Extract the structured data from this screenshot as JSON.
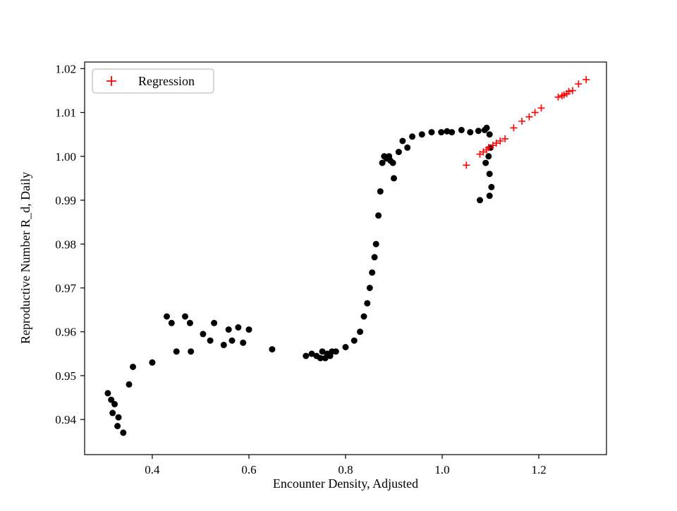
{
  "chart_data": {
    "type": "scatter",
    "title": "",
    "xlabel": "Encounter Density, Adjusted",
    "ylabel": "Reproductive Number R_d, Daily",
    "xlim": [
      0.26,
      1.34
    ],
    "ylim": [
      0.932,
      1.0215
    ],
    "xticks": [
      0.4,
      0.6,
      0.8,
      1.0,
      1.2
    ],
    "xtick_labels": [
      "0.4",
      "0.6",
      "0.8",
      "1.0",
      "1.2"
    ],
    "yticks": [
      0.94,
      0.95,
      0.96,
      0.97,
      0.98,
      0.99,
      1.0,
      1.01,
      1.02
    ],
    "ytick_labels": [
      "0.94",
      "0.95",
      "0.96",
      "0.97",
      "0.98",
      "0.99",
      "1.00",
      "1.01",
      "1.02"
    ],
    "grid": false,
    "legend": {
      "position": "upper-left",
      "entries": [
        {
          "label": "Regression",
          "marker": "plus",
          "color": "#ff0000"
        }
      ]
    },
    "series": [
      {
        "name": "observations",
        "marker": "circle",
        "color": "#000000",
        "points": [
          [
            0.308,
            0.946
          ],
          [
            0.315,
            0.9445
          ],
          [
            0.318,
            0.9415
          ],
          [
            0.322,
            0.9435
          ],
          [
            0.328,
            0.9385
          ],
          [
            0.33,
            0.9405
          ],
          [
            0.34,
            0.937
          ],
          [
            0.352,
            0.948
          ],
          [
            0.36,
            0.952
          ],
          [
            0.4,
            0.953
          ],
          [
            0.43,
            0.9635
          ],
          [
            0.44,
            0.962
          ],
          [
            0.45,
            0.9555
          ],
          [
            0.468,
            0.9635
          ],
          [
            0.478,
            0.962
          ],
          [
            0.48,
            0.9555
          ],
          [
            0.505,
            0.9595
          ],
          [
            0.52,
            0.958
          ],
          [
            0.528,
            0.962
          ],
          [
            0.548,
            0.957
          ],
          [
            0.558,
            0.9605
          ],
          [
            0.565,
            0.958
          ],
          [
            0.578,
            0.961
          ],
          [
            0.588,
            0.9575
          ],
          [
            0.6,
            0.9605
          ],
          [
            0.648,
            0.956
          ],
          [
            0.718,
            0.9545
          ],
          [
            0.73,
            0.955
          ],
          [
            0.74,
            0.9545
          ],
          [
            0.748,
            0.954
          ],
          [
            0.752,
            0.9555
          ],
          [
            0.758,
            0.954
          ],
          [
            0.762,
            0.955
          ],
          [
            0.768,
            0.9545
          ],
          [
            0.772,
            0.9555
          ],
          [
            0.78,
            0.9555
          ],
          [
            0.8,
            0.9565
          ],
          [
            0.818,
            0.958
          ],
          [
            0.83,
            0.96
          ],
          [
            0.838,
            0.9635
          ],
          [
            0.845,
            0.9665
          ],
          [
            0.85,
            0.97
          ],
          [
            0.855,
            0.9735
          ],
          [
            0.86,
            0.977
          ],
          [
            0.863,
            0.98
          ],
          [
            0.868,
            0.9865
          ],
          [
            0.872,
            0.992
          ],
          [
            0.876,
            0.9985
          ],
          [
            0.88,
            1.0
          ],
          [
            0.885,
            0.9995
          ],
          [
            0.89,
            1.0
          ],
          [
            0.893,
            0.999
          ],
          [
            0.898,
            0.9985
          ],
          [
            0.9,
            0.995
          ],
          [
            0.91,
            1.001
          ],
          [
            0.918,
            1.0035
          ],
          [
            0.928,
            1.002
          ],
          [
            0.938,
            1.0045
          ],
          [
            0.958,
            1.005
          ],
          [
            0.978,
            1.0055
          ],
          [
            0.998,
            1.0055
          ],
          [
            1.01,
            1.0057
          ],
          [
            1.02,
            1.0055
          ],
          [
            1.04,
            1.006
          ],
          [
            1.058,
            1.0055
          ],
          [
            1.075,
            1.0058
          ],
          [
            1.088,
            1.006
          ],
          [
            1.092,
            1.0065
          ],
          [
            1.098,
            1.005
          ],
          [
            1.1,
            1.002
          ],
          [
            1.096,
            1.0
          ],
          [
            1.09,
            0.9985
          ],
          [
            1.098,
            0.996
          ],
          [
            1.102,
            0.993
          ],
          [
            1.098,
            0.991
          ],
          [
            1.078,
            0.99
          ]
        ]
      },
      {
        "name": "Regression",
        "marker": "plus",
        "color": "#ff0000",
        "points": [
          [
            1.05,
            0.998
          ],
          [
            1.078,
            1.0005
          ],
          [
            1.085,
            1.001
          ],
          [
            1.092,
            1.0015
          ],
          [
            1.096,
            1.002
          ],
          [
            1.105,
            1.0025
          ],
          [
            1.112,
            1.003
          ],
          [
            1.12,
            1.0035
          ],
          [
            1.13,
            1.004
          ],
          [
            1.148,
            1.0065
          ],
          [
            1.165,
            1.008
          ],
          [
            1.18,
            1.009
          ],
          [
            1.192,
            1.01
          ],
          [
            1.205,
            1.011
          ],
          [
            1.24,
            1.0135
          ],
          [
            1.248,
            1.0138
          ],
          [
            1.252,
            1.014
          ],
          [
            1.258,
            1.0143
          ],
          [
            1.262,
            1.0148
          ],
          [
            1.27,
            1.015
          ],
          [
            1.282,
            1.0165
          ],
          [
            1.298,
            1.0175
          ]
        ]
      }
    ]
  }
}
